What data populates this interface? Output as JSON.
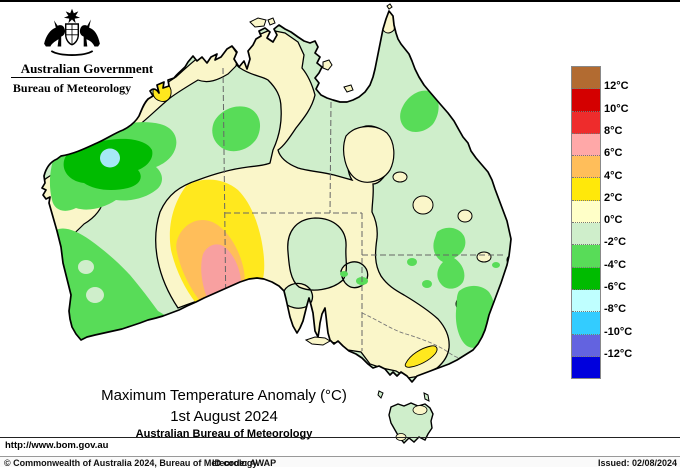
{
  "header": {
    "government": "Australian Government",
    "bureau": "Bureau of Meteorology"
  },
  "title_block": {
    "title": "Maximum Temperature Anomaly (°C)",
    "date": "1st August 2024",
    "source": "Australian Bureau of Meteorology"
  },
  "legend": {
    "labels": [
      "12°C",
      "10°C",
      "8°C",
      "6°C",
      "4°C",
      "2°C",
      "0°C",
      "-2°C",
      "-4°C",
      "-6°C",
      "-8°C",
      "-10°C",
      "-12°C"
    ],
    "swatch_colors": [
      "#B26B31",
      "#D40000",
      "#EE2C2C",
      "#FFA8A8",
      "#FFBE5A",
      "#FFE80A",
      "#FFFFC8",
      "#CFEECB",
      "#58DC58",
      "#00BB00",
      "#BFFFFF",
      "#33CCFF",
      "#6363E0",
      "#0000DD"
    ]
  },
  "footer": {
    "url": "http://www.bom.gov.au",
    "copyright": "© Commonwealth of Australia 2024, Bureau of Meteorology",
    "id_code": "ID code: AWAP",
    "issued": "Issued: 02/08/2024"
  },
  "map_colors": {
    "cream": "#FAF6C9",
    "palegreen": "#CFEECB",
    "medgreen": "#58DC58",
    "darkgreen": "#00BB00",
    "cyanspot": "#A5E8F5",
    "yellow": "#FFE81E",
    "orange": "#FFBE5A",
    "pink": "#F8A0A0"
  }
}
